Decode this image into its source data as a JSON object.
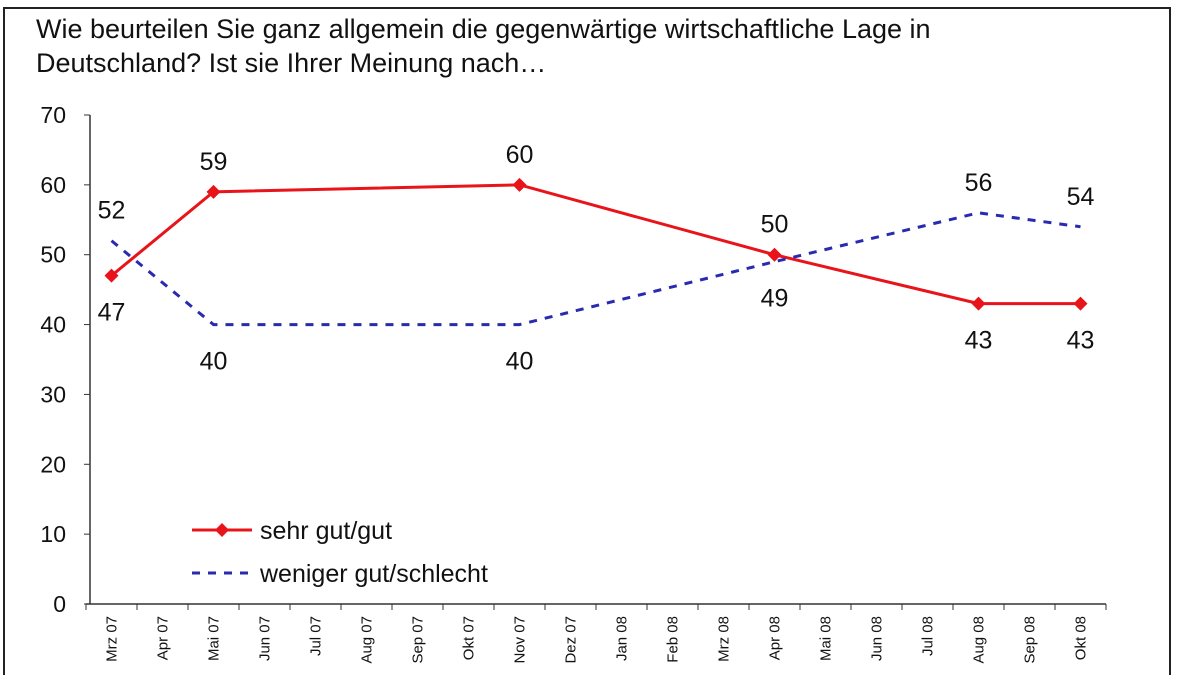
{
  "chart_data": {
    "type": "line",
    "title": "Wie beurteilen Sie ganz allgemein die gegenwärtige wirtschaftliche Lage in Deutschland? Ist sie Ihrer Meinung nach…",
    "categories": [
      "Mrz 07",
      "Apr 07",
      "Mai 07",
      "Jun 07",
      "Jul 07",
      "Aug 07",
      "Sep 07",
      "Okt 07",
      "Nov 07",
      "Dez 07",
      "Jan 08",
      "Feb 08",
      "Mrz 08",
      "Apr 08",
      "Mai 08",
      "Jun 08",
      "Jul 08",
      "Aug 08",
      "Sep 08",
      "Okt 08"
    ],
    "series": [
      {
        "name": "sehr gut/gut",
        "color": "#e8141a",
        "style": "solid",
        "marker": "diamond",
        "x": [
          "Mrz 07",
          "Mai 07",
          "Nov 07",
          "Apr 08",
          "Aug 08",
          "Okt 08"
        ],
        "values": [
          47,
          59,
          60,
          50,
          43,
          43
        ]
      },
      {
        "name": "weniger gut/schlecht",
        "color": "#2a2ab0",
        "style": "dashed",
        "marker": "none",
        "x": [
          "Mrz 07",
          "Mai 07",
          "Nov 07",
          "Apr 08",
          "Aug 08",
          "Okt 08"
        ],
        "values": [
          52,
          40,
          40,
          49,
          56,
          54
        ]
      }
    ],
    "ylim": [
      0,
      70
    ],
    "yticks": [
      0,
      10,
      20,
      30,
      40,
      50,
      60,
      70
    ],
    "grid": false
  }
}
